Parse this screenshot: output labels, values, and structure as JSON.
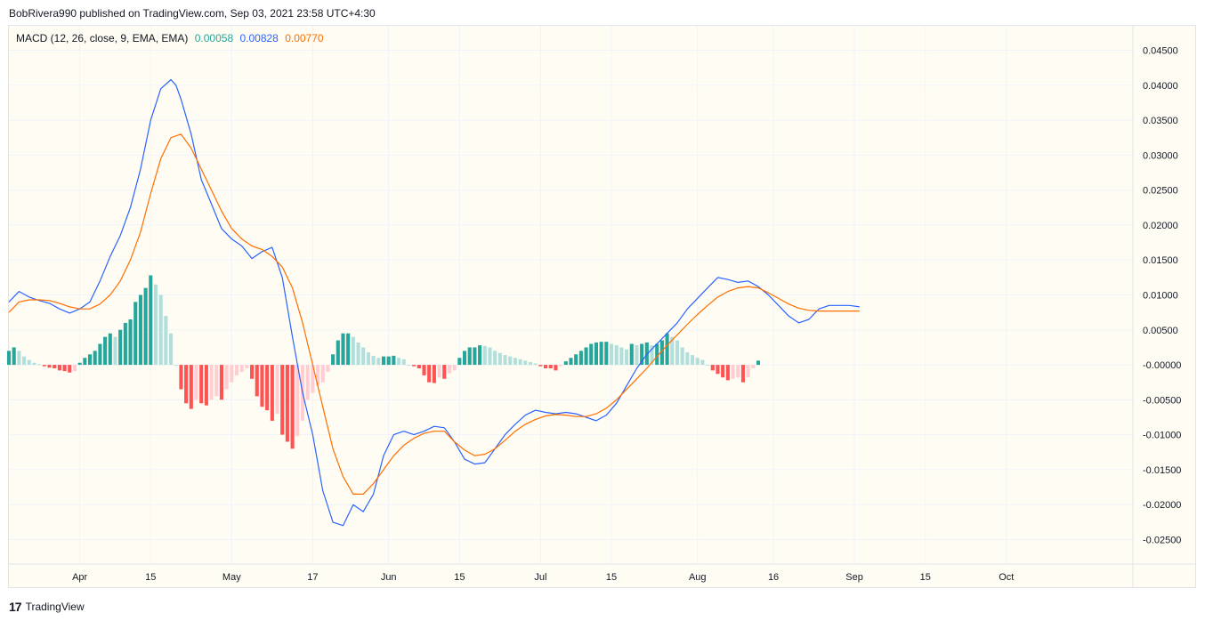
{
  "header": {
    "publish_line": "BobRivera990 published on TradingView.com, Sep 03, 2021 23:58 UTC+4:30"
  },
  "legend": {
    "indicator": "MACD (12, 26, close, 9, EMA, EMA)",
    "hist_value": "0.00058",
    "macd_value": "0.00828",
    "signal_value": "0.00770"
  },
  "footer": {
    "logo_icon": "tradingview-logo-icon",
    "brand": "TradingView"
  },
  "colors": {
    "macd_line": "#2962ff",
    "signal_line": "#ff6d00",
    "hist_pos_grow": "#26a69a",
    "hist_pos_fall": "#b2dfdb",
    "hist_neg_grow": "#ff5252",
    "hist_neg_fall": "#ffcdd2",
    "grid": "#f0f3fa",
    "axis_text": "#131722"
  },
  "chart_data": {
    "type": "line",
    "title": "",
    "y_ticks": [
      "0.04500",
      "0.04000",
      "0.03500",
      "0.03000",
      "0.02500",
      "0.02000",
      "0.01500",
      "0.01000",
      "0.00500",
      "-0.00000",
      "-0.00500",
      "-0.01000",
      "-0.01500",
      "-0.02000",
      "-0.02500"
    ],
    "ylim": [
      -0.0285,
      0.0485
    ],
    "x_ticks": [
      {
        "label": "Apr",
        "day": 14
      },
      {
        "label": "15",
        "day": 28
      },
      {
        "label": "May",
        "day": 44
      },
      {
        "label": "17",
        "day": 60
      },
      {
        "label": "Jun",
        "day": 75
      },
      {
        "label": "15",
        "day": 89
      },
      {
        "label": "Jul",
        "day": 105
      },
      {
        "label": "15",
        "day": 119
      },
      {
        "label": "Aug",
        "day": 136
      },
      {
        "label": "16",
        "day": 151
      },
      {
        "label": "Sep",
        "day": 167
      },
      {
        "label": "15",
        "day": 181
      },
      {
        "label": "Oct",
        "day": 197
      }
    ],
    "xlim": [
      0,
      222
    ],
    "series": [
      {
        "name": "MACD",
        "x": [
          0,
          2,
          4,
          6,
          8,
          10,
          12,
          14,
          16,
          18,
          20,
          22,
          24,
          26,
          28,
          30,
          32,
          33,
          34,
          36,
          38,
          40,
          42,
          44,
          46,
          48,
          50,
          52,
          54,
          56,
          58,
          60,
          62,
          64,
          66,
          68,
          70,
          72,
          74,
          76,
          78,
          80,
          82,
          84,
          86,
          88,
          90,
          92,
          94,
          96,
          98,
          100,
          102,
          104,
          106,
          108,
          110,
          112,
          114,
          116,
          118,
          120,
          122,
          124,
          126,
          128,
          130,
          132,
          134,
          136,
          138,
          140,
          142,
          144,
          146,
          148,
          150,
          152,
          154,
          156,
          158,
          160,
          162,
          164,
          166,
          168
        ],
        "y": [
          0.009,
          0.0105,
          0.0097,
          0.0092,
          0.0088,
          0.008,
          0.0074,
          0.008,
          0.009,
          0.012,
          0.0155,
          0.0185,
          0.0225,
          0.028,
          0.035,
          0.0395,
          0.0408,
          0.04,
          0.038,
          0.033,
          0.0265,
          0.023,
          0.0195,
          0.018,
          0.017,
          0.0152,
          0.0162,
          0.0168,
          0.0125,
          0.004,
          -0.004,
          -0.01,
          -0.018,
          -0.0225,
          -0.023,
          -0.02,
          -0.021,
          -0.0185,
          -0.013,
          -0.01,
          -0.0095,
          -0.01,
          -0.0095,
          -0.0088,
          -0.009,
          -0.011,
          -0.0135,
          -0.0142,
          -0.014,
          -0.012,
          -0.01,
          -0.0085,
          -0.0072,
          -0.0065,
          -0.0068,
          -0.007,
          -0.0068,
          -0.007,
          -0.0075,
          -0.008,
          -0.0072,
          -0.0055,
          -0.003,
          -0.0005,
          0.0015,
          0.003,
          0.0045,
          0.006,
          0.008,
          0.0095,
          0.011,
          0.0125,
          0.0122,
          0.0118,
          0.012,
          0.0112,
          0.01,
          0.0085,
          0.007,
          0.006,
          0.0065,
          0.008,
          0.0085,
          0.0085,
          0.0085,
          0.0083
        ]
      },
      {
        "name": "Signal",
        "x": [
          0,
          2,
          4,
          6,
          8,
          10,
          12,
          14,
          16,
          18,
          20,
          22,
          24,
          26,
          28,
          30,
          32,
          34,
          36,
          38,
          40,
          42,
          44,
          46,
          48,
          50,
          52,
          54,
          56,
          58,
          60,
          62,
          64,
          66,
          68,
          70,
          72,
          74,
          76,
          78,
          80,
          82,
          84,
          86,
          88,
          90,
          92,
          94,
          96,
          98,
          100,
          102,
          104,
          106,
          108,
          110,
          112,
          114,
          116,
          118,
          120,
          122,
          124,
          126,
          128,
          130,
          132,
          134,
          136,
          138,
          140,
          142,
          144,
          146,
          148,
          150,
          152,
          154,
          156,
          158,
          160,
          162,
          164,
          166,
          168
        ],
        "y": [
          0.0075,
          0.009,
          0.0093,
          0.0093,
          0.0092,
          0.0088,
          0.0083,
          0.008,
          0.008,
          0.0087,
          0.01,
          0.012,
          0.015,
          0.019,
          0.0245,
          0.0295,
          0.0325,
          0.033,
          0.031,
          0.028,
          0.025,
          0.022,
          0.0195,
          0.018,
          0.017,
          0.0165,
          0.0155,
          0.014,
          0.011,
          0.006,
          0.0,
          -0.006,
          -0.012,
          -0.016,
          -0.0185,
          -0.0185,
          -0.017,
          -0.015,
          -0.013,
          -0.0115,
          -0.0105,
          -0.0098,
          -0.0095,
          -0.0095,
          -0.011,
          -0.0122,
          -0.013,
          -0.0128,
          -0.012,
          -0.0108,
          -0.0095,
          -0.0085,
          -0.0078,
          -0.0073,
          -0.0071,
          -0.0072,
          -0.0074,
          -0.0074,
          -0.007,
          -0.0062,
          -0.005,
          -0.0035,
          -0.002,
          -0.0005,
          0.0012,
          0.0028,
          0.0043,
          0.0058,
          0.0072,
          0.0085,
          0.0097,
          0.0105,
          0.011,
          0.0112,
          0.011,
          0.0103,
          0.0095,
          0.0087,
          0.0081,
          0.0078,
          0.0077,
          0.0077,
          0.0077,
          0.0077,
          0.0077
        ]
      }
    ],
    "histogram": {
      "name": "Histogram",
      "start_day": 0,
      "values": [
        0.002,
        0.0025,
        0.002,
        0.0012,
        0.0007,
        0.0003,
        0.0001,
        -0.0002,
        -0.0004,
        -0.0005,
        -0.0008,
        -0.0009,
        -0.0011,
        -0.0009,
        0.0003,
        0.001,
        0.0015,
        0.002,
        0.003,
        0.004,
        0.0045,
        0.004,
        0.005,
        0.006,
        0.0065,
        0.009,
        0.01,
        0.011,
        0.0128,
        0.0115,
        0.01,
        0.007,
        0.0045,
        0.0,
        -0.0035,
        -0.0055,
        -0.0063,
        -0.005,
        -0.0055,
        -0.0058,
        -0.005,
        -0.0045,
        -0.005,
        -0.0035,
        -0.0025,
        -0.0015,
        -0.001,
        -0.0005,
        -0.002,
        -0.0045,
        -0.006,
        -0.0065,
        -0.008,
        -0.007,
        -0.01,
        -0.011,
        -0.012,
        -0.0102,
        -0.008,
        -0.005,
        -0.004,
        -0.003,
        -0.0025,
        -0.001,
        0.0015,
        0.0035,
        0.0045,
        0.0045,
        0.004,
        0.0032,
        0.0025,
        0.0018,
        0.0013,
        0.001,
        0.0012,
        0.0012,
        0.0013,
        0.001,
        0.0008,
        0.0,
        -0.0002,
        -0.0005,
        -0.0015,
        -0.0025,
        -0.0026,
        -0.0018,
        -0.002,
        -0.0012,
        -0.0008,
        0.001,
        0.002,
        0.0025,
        0.0025,
        0.0028,
        0.0027,
        0.0025,
        0.002,
        0.0017,
        0.0014,
        0.0012,
        0.001,
        0.0008,
        0.0006,
        0.0004,
        0.0002,
        -0.0002,
        -0.0005,
        -0.0005,
        -0.0008,
        -0.0002,
        0.0005,
        0.001,
        0.0015,
        0.002,
        0.0025,
        0.003,
        0.0032,
        0.0033,
        0.0033,
        0.003,
        0.0028,
        0.0025,
        0.0022,
        0.003,
        0.0028,
        0.003,
        0.0032,
        0.0028,
        0.003,
        0.0035,
        0.0045,
        0.004,
        0.0035,
        0.0025,
        0.0018,
        0.0014,
        0.001,
        0.0007,
        0.0,
        -0.0008,
        -0.0013,
        -0.0018,
        -0.0022,
        -0.002,
        -0.0018,
        -0.0025,
        -0.0018,
        -0.0005,
        0.0006
      ]
    }
  }
}
